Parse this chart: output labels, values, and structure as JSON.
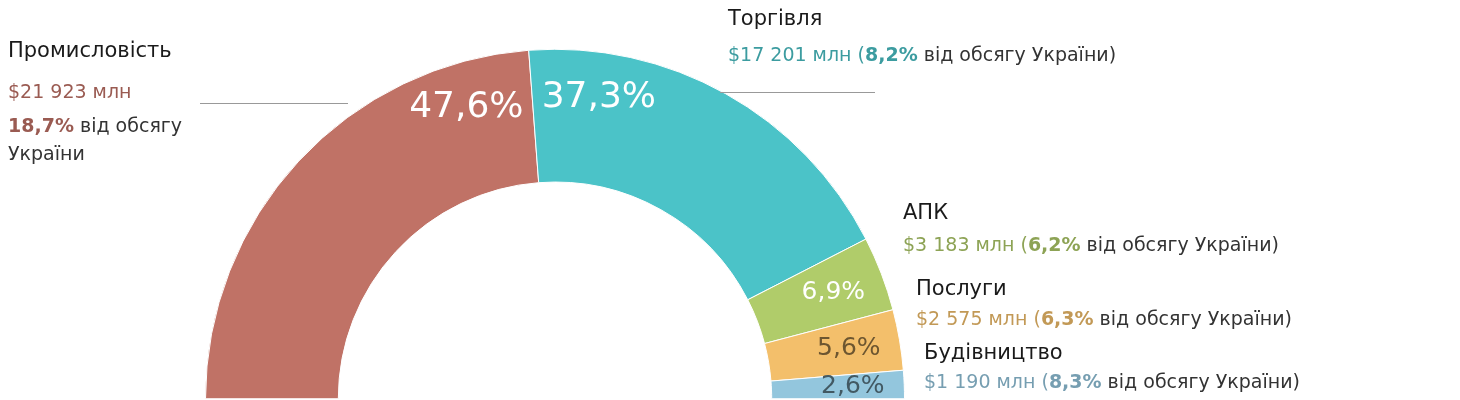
{
  "chart_data": {
    "type": "donut",
    "categories": [
      "Промисловість",
      "Торгівля",
      "АПК",
      "Послуги",
      "Будівництво"
    ],
    "values": [
      47.6,
      37.3,
      6.9,
      5.6,
      2.6
    ],
    "colors": [
      "#c07266",
      "#4bc3c8",
      "#b0cc6a",
      "#f3bf6b",
      "#93c6dd"
    ],
    "value_labels": [
      "47,6%",
      "37,3%",
      "6,9%",
      "5,6%",
      "2,6%"
    ],
    "annotations": [
      "$21 923 млн",
      "18,7% від обсягу України",
      "$17 201 млн (8,2% від обсягу України)",
      "$3 183 млн (6,2% від обсягу України)",
      "$2 575 млн (6,3% від обсягу України)",
      "$1 190 млн (8,3% від обсягу України)"
    ]
  }
}
